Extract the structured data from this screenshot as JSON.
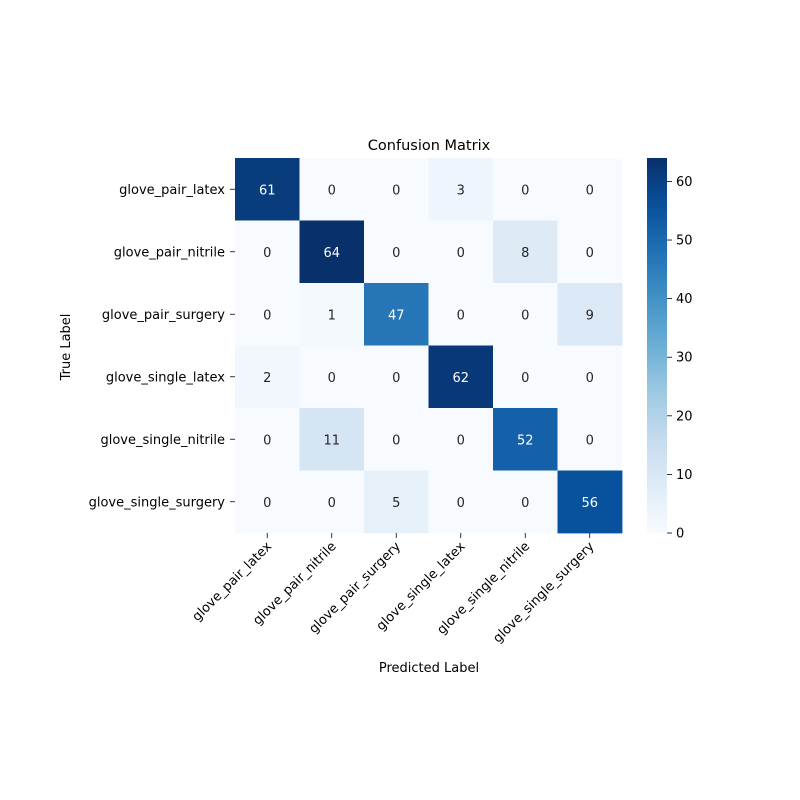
{
  "chart_data": {
    "type": "heatmap",
    "title": "Confusion Matrix",
    "xlabel": "Predicted Label",
    "ylabel": "True Label",
    "row_labels": [
      "glove_pair_latex",
      "glove_pair_nitrile",
      "glove_pair_surgery",
      "glove_single_latex",
      "glove_single_nitrile",
      "glove_single_surgery"
    ],
    "col_labels": [
      "glove_pair_latex",
      "glove_pair_nitrile",
      "glove_pair_surgery",
      "glove_single_latex",
      "glove_single_nitrile",
      "glove_single_surgery"
    ],
    "values": [
      [
        61,
        0,
        0,
        3,
        0,
        0
      ],
      [
        0,
        64,
        0,
        0,
        8,
        0
      ],
      [
        0,
        1,
        47,
        0,
        0,
        9
      ],
      [
        2,
        0,
        0,
        62,
        0,
        0
      ],
      [
        0,
        11,
        0,
        0,
        52,
        0
      ],
      [
        0,
        0,
        5,
        0,
        0,
        56
      ]
    ],
    "vmin": 0,
    "vmax": 64,
    "colorbar_ticks": [
      0,
      10,
      20,
      30,
      40,
      50,
      60
    ],
    "colormap": "Blues",
    "colormap_low": "#f7fbff",
    "colormap_high": "#08306b",
    "grid": false,
    "legend": "colorbar-right"
  }
}
